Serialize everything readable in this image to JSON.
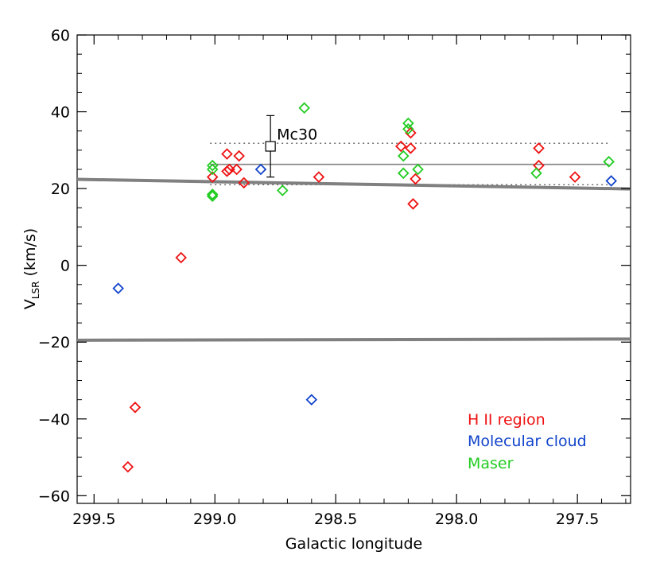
{
  "chart_data": {
    "type": "scatter",
    "title": "",
    "xlabel": "Galactic longitude",
    "ylabel": "V",
    "ylabel_subscript": "LSR",
    "ylabel_unit": " (km/s)",
    "xlim": [
      299.57,
      297.28
    ],
    "ylim": [
      -62,
      60
    ],
    "xticks": [
      299.5,
      299.0,
      298.5,
      298.0,
      297.5
    ],
    "xtick_labels": [
      "299.5",
      "299.0",
      "298.5",
      "298.0",
      "297.5"
    ],
    "yticks": [
      -60,
      -40,
      -20,
      0,
      20,
      40,
      60
    ],
    "ytick_labels": [
      "−60",
      "−40",
      "−20",
      "0",
      "20",
      "40",
      "60"
    ],
    "grid": false,
    "legend_position": "bottom-right",
    "series": [
      {
        "name": "H II region",
        "color": "#ee1111",
        "marker": "diamond",
        "points": [
          [
            299.36,
            -52.5
          ],
          [
            299.33,
            -37.0
          ],
          [
            299.14,
            2.0
          ],
          [
            299.01,
            23.0
          ],
          [
            298.95,
            29.0
          ],
          [
            298.95,
            24.5
          ],
          [
            298.94,
            25.0
          ],
          [
            298.91,
            25.0
          ],
          [
            298.9,
            28.5
          ],
          [
            298.88,
            21.5
          ],
          [
            298.57,
            23.0
          ],
          [
            298.23,
            31.0
          ],
          [
            298.19,
            34.5
          ],
          [
            298.19,
            30.5
          ],
          [
            298.17,
            22.5
          ],
          [
            298.18,
            16.0
          ],
          [
            297.66,
            30.5
          ],
          [
            297.66,
            26.0
          ],
          [
            297.51,
            23.0
          ]
        ]
      },
      {
        "name": "Molecular cloud",
        "color": "#1144cc",
        "marker": "diamond",
        "points": [
          [
            299.4,
            -6.0
          ],
          [
            298.81,
            25.0
          ],
          [
            298.6,
            -35.0
          ],
          [
            297.36,
            22.0
          ]
        ]
      },
      {
        "name": "Maser",
        "color": "#22cc22",
        "marker": "diamond",
        "points": [
          [
            299.01,
            26.0
          ],
          [
            299.01,
            25.0
          ],
          [
            299.01,
            18.5
          ],
          [
            299.01,
            18.0
          ],
          [
            298.72,
            19.5
          ],
          [
            298.63,
            41.0
          ],
          [
            298.2,
            37.0
          ],
          [
            298.2,
            35.5
          ],
          [
            298.22,
            28.5
          ],
          [
            298.22,
            24.0
          ],
          [
            298.16,
            25.0
          ],
          [
            297.67,
            24.0
          ],
          [
            297.37,
            27.0
          ]
        ]
      }
    ],
    "reference_point": {
      "label": "Mc30",
      "x": 298.77,
      "y": 31.0,
      "y_err_low": 23.0,
      "y_err_high": 39.0,
      "color": "#000000"
    },
    "horizontal_lines": [
      {
        "style": "solid",
        "color": "#808080",
        "x_range": [
          299.02,
          297.37
        ],
        "y": 26.3
      },
      {
        "style": "dotted",
        "color": "#606060",
        "x_range": [
          299.02,
          297.37
        ],
        "y": 31.8
      },
      {
        "style": "dotted",
        "color": "#606060",
        "x_range": [
          299.02,
          297.37
        ],
        "y": 21.0
      }
    ],
    "sloped_lines": [
      {
        "style": "thick-solid",
        "color": "#808080",
        "y_at_xmin": 22.4,
        "y_at_xmax": 19.9
      },
      {
        "style": "thick-solid",
        "color": "#808080",
        "y_at_xmin": -19.5,
        "y_at_xmax": -19.2
      }
    ]
  }
}
